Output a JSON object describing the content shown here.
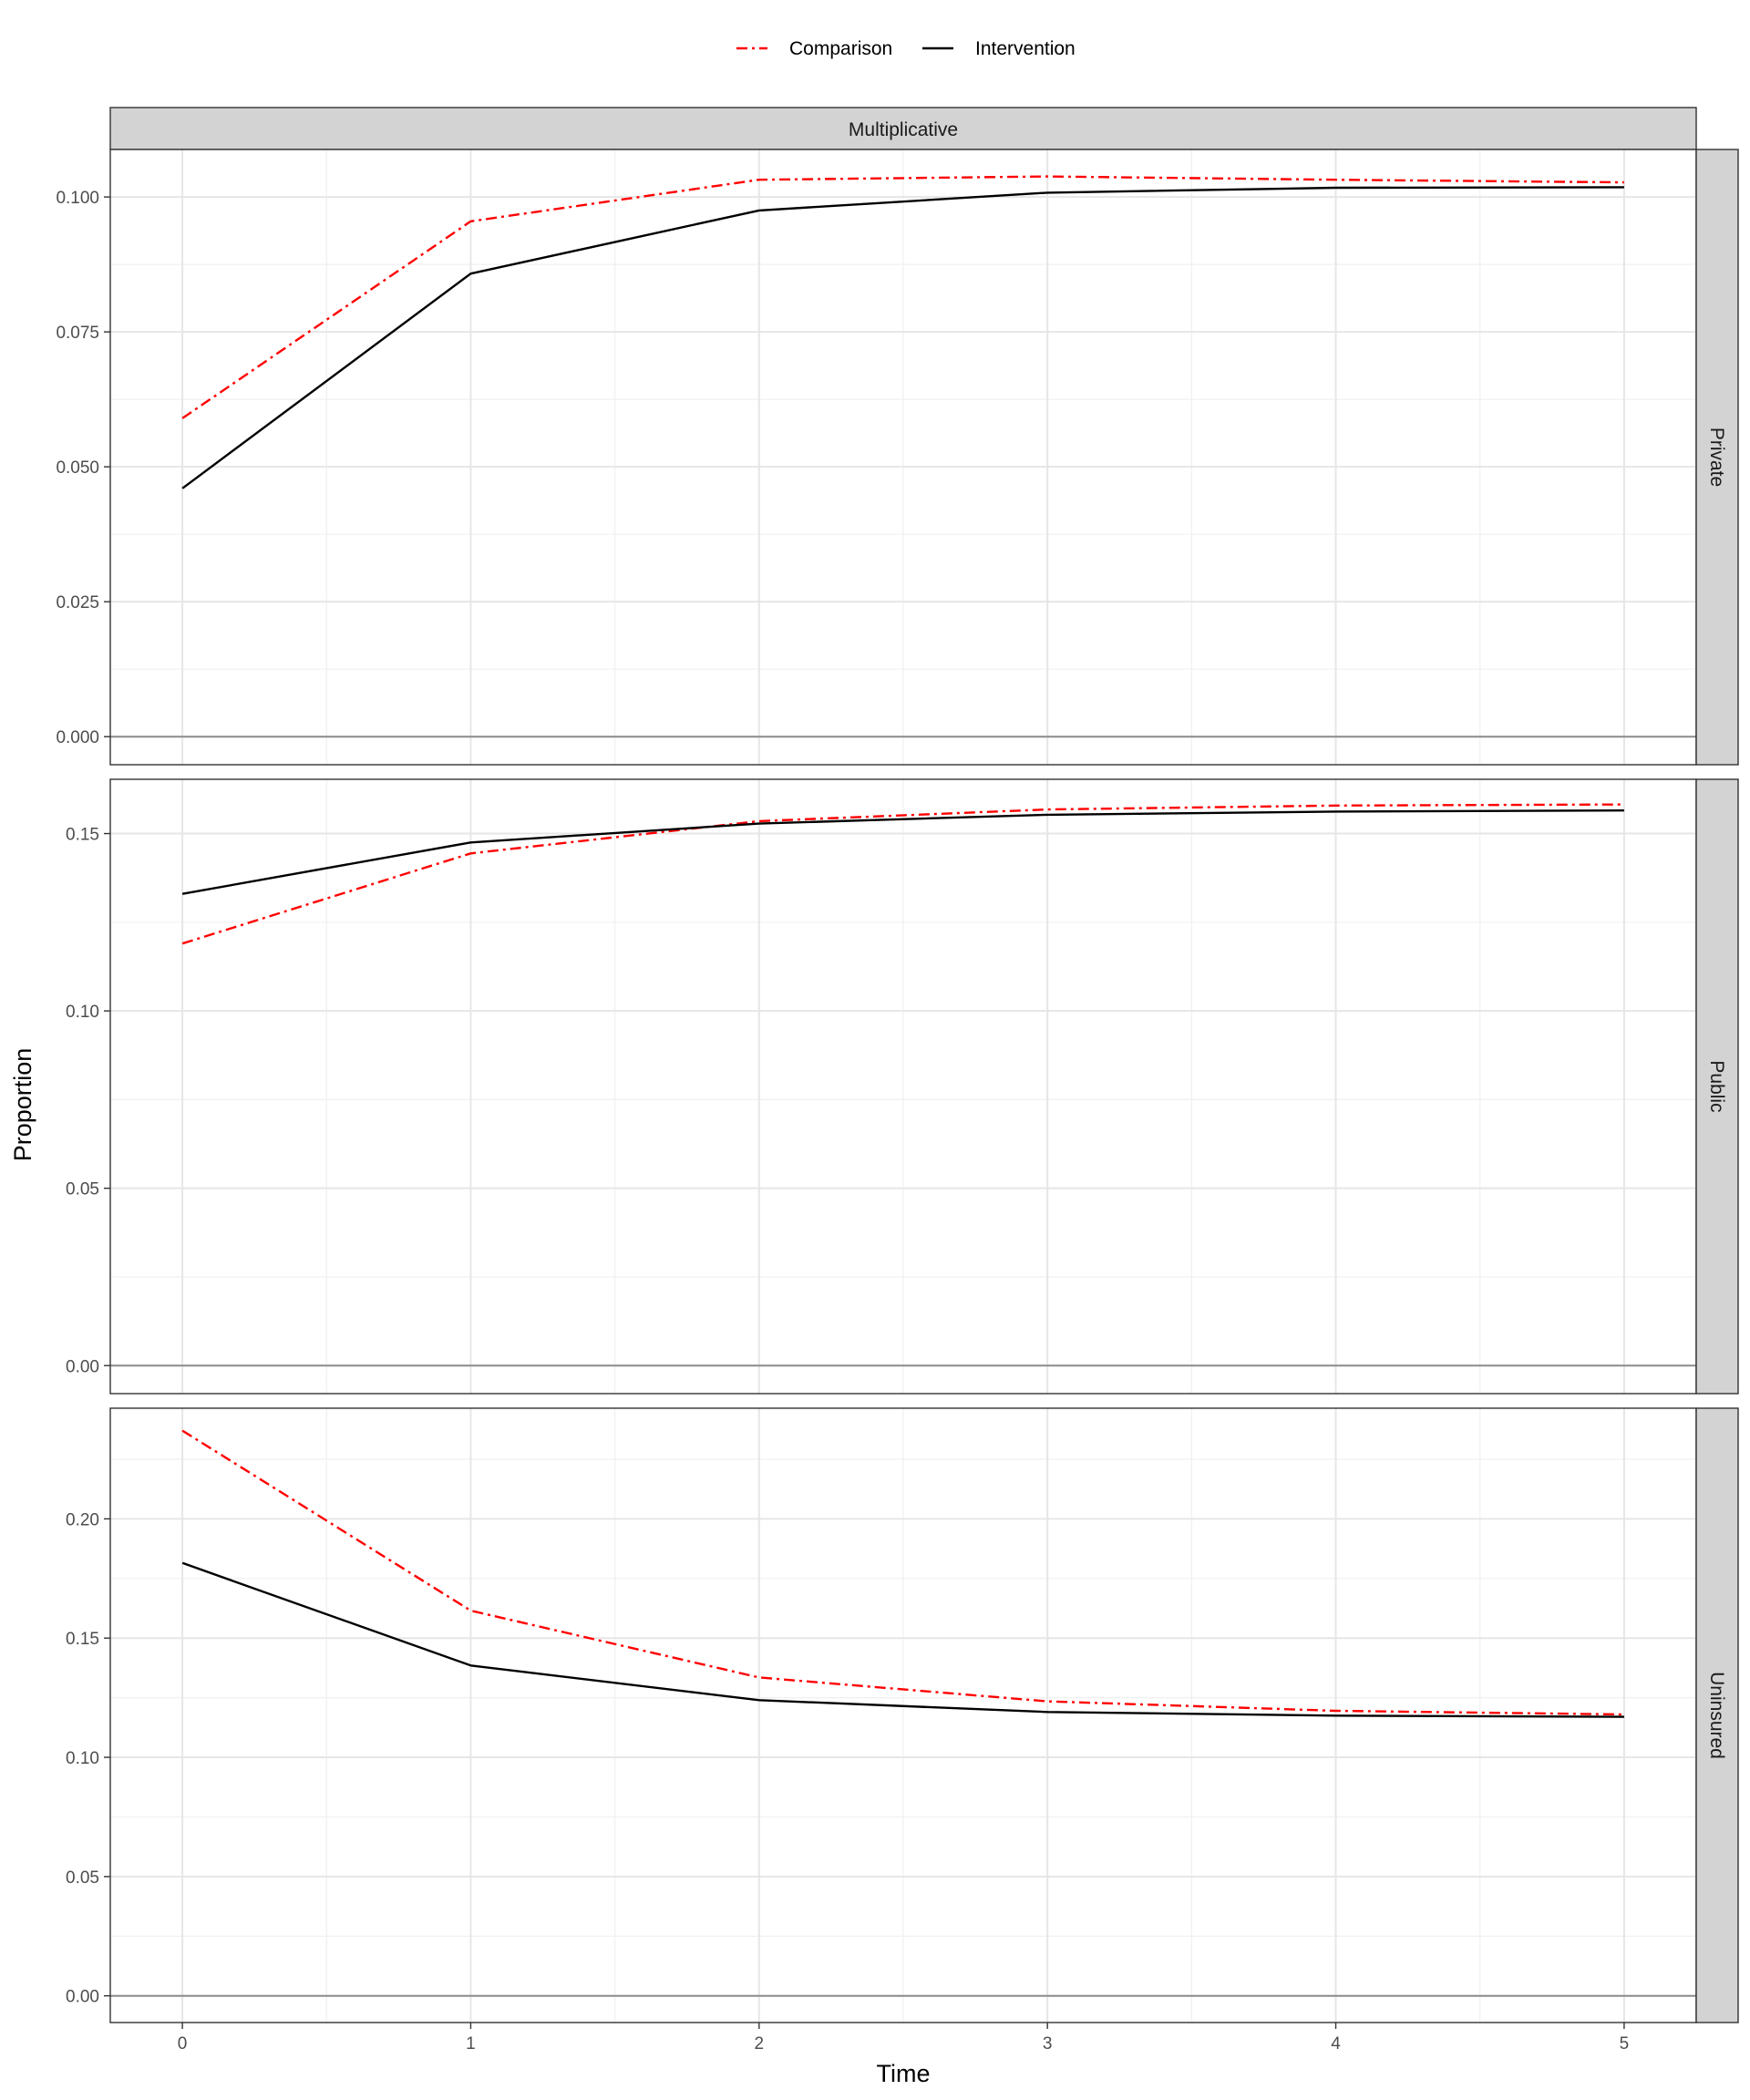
{
  "chart_data": {
    "type": "line",
    "column_strip": "Multiplicative",
    "xlabel": "Time",
    "ylabel": "Proportion",
    "x": [
      0,
      1,
      2,
      3,
      4,
      5
    ],
    "x_ticks": [
      "0",
      "1",
      "2",
      "3",
      "4",
      "5"
    ],
    "xlim": [
      -0.25,
      5.25
    ],
    "legend": {
      "position": "top",
      "entries": [
        {
          "name": "Comparison",
          "color": "#ff0000",
          "linestyle": "dashdot"
        },
        {
          "name": "Intervention",
          "color": "#000000",
          "linestyle": "solid"
        }
      ]
    },
    "grid": true,
    "panels": [
      {
        "strip": "Private",
        "ylim": [
          -0.0052,
          0.1088
        ],
        "y_ticks": [
          "0.000",
          "0.025",
          "0.050",
          "0.075",
          "0.100"
        ],
        "y_tick_values": [
          0,
          0.025,
          0.05,
          0.075,
          0.1
        ],
        "series": [
          {
            "name": "Comparison",
            "values": [
              0.059,
              0.0955,
              0.1032,
              0.1038,
              0.1032,
              0.1027
            ]
          },
          {
            "name": "Intervention",
            "values": [
              0.046,
              0.0858,
              0.0975,
              0.1008,
              0.1017,
              0.1018
            ]
          }
        ]
      },
      {
        "strip": "Public",
        "ylim": [
          -0.0079,
          0.1653
        ],
        "y_ticks": [
          "0.00",
          "0.05",
          "0.10",
          "0.15"
        ],
        "y_tick_values": [
          0,
          0.05,
          0.1,
          0.15
        ],
        "series": [
          {
            "name": "Comparison",
            "values": [
              0.119,
              0.1444,
              0.1535,
              0.1568,
              0.1579,
              0.1582
            ]
          },
          {
            "name": "Intervention",
            "values": [
              0.133,
              0.1475,
              0.1528,
              0.1553,
              0.1562,
              0.1565
            ]
          }
        ]
      },
      {
        "strip": "Uninsured",
        "ylim": [
          -0.0112,
          0.2464
        ],
        "y_ticks": [
          "0.00",
          "0.05",
          "0.10",
          "0.15",
          "0.20"
        ],
        "y_tick_values": [
          0,
          0.05,
          0.1,
          0.15,
          0.2
        ],
        "series": [
          {
            "name": "Comparison",
            "values": [
              0.237,
              0.1615,
              0.1335,
              0.1235,
              0.1195,
              0.118
            ]
          },
          {
            "name": "Intervention",
            "values": [
              0.1815,
              0.1385,
              0.124,
              0.119,
              0.1175,
              0.117
            ]
          }
        ]
      }
    ]
  }
}
